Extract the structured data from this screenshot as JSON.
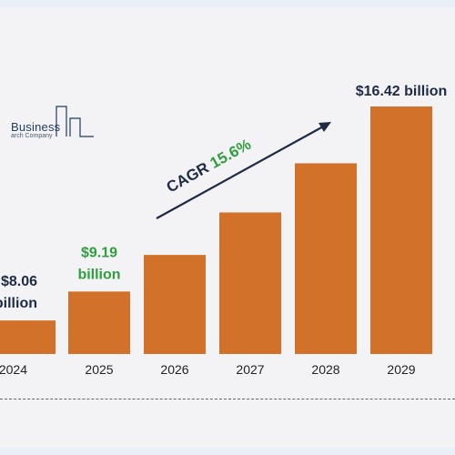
{
  "logo": {
    "line1": "Business",
    "line2": "arch Company"
  },
  "colors": {
    "bar": "#d2722a",
    "label_dark": "#1f2a44",
    "label_green": "#2e9e3e",
    "arrow": "#1f2a44"
  },
  "chart_data": {
    "type": "bar",
    "categories": [
      "2024",
      "2025",
      "2026",
      "2027",
      "2028",
      "2029"
    ],
    "values": [
      8.06,
      9.19,
      10.62,
      12.28,
      14.2,
      16.42
    ],
    "ylim": [
      6.75,
      16.42
    ],
    "value_labels": [
      {
        "index": 0,
        "line1": "$8.06",
        "line2": "billion",
        "color": "dark"
      },
      {
        "index": 1,
        "line1": "$9.19",
        "line2": "billion",
        "color": "green"
      },
      {
        "index": 5,
        "line1": "$16.42 billion",
        "line2": "",
        "color": "dark"
      }
    ],
    "annotation": {
      "prefix": "CAGR ",
      "value": "15.6%"
    }
  }
}
